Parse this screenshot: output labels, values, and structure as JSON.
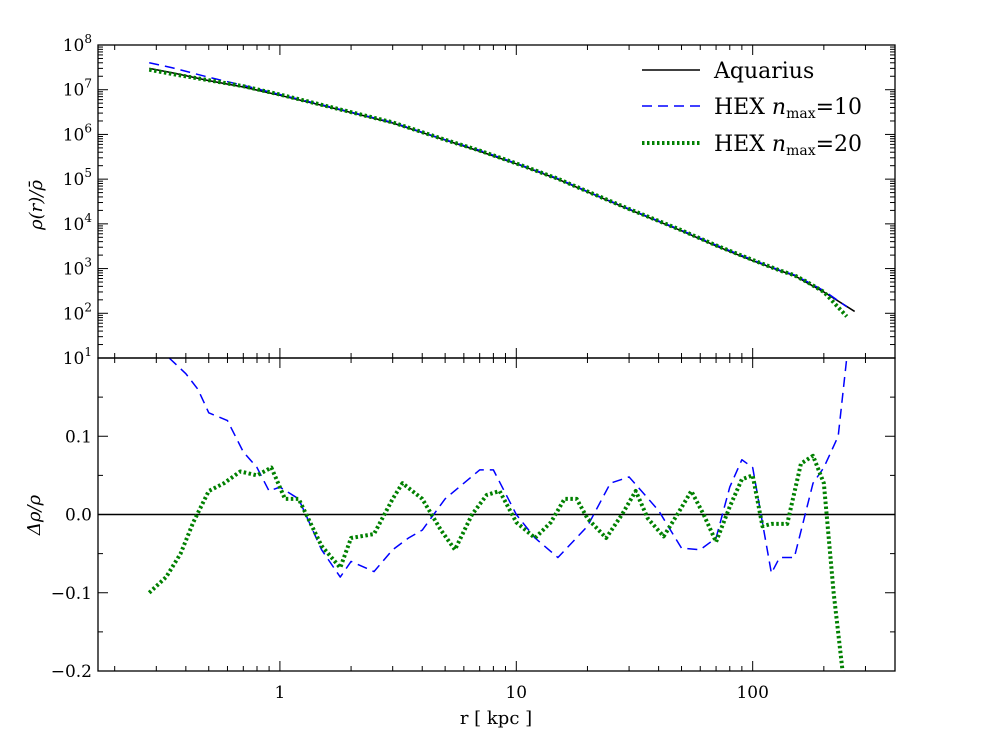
{
  "chart_data": [
    {
      "type": "line",
      "panel": "top",
      "title": "",
      "xlabel": "",
      "ylabel": "ρ(r)/ρ̄",
      "xscale": "log",
      "yscale": "log",
      "xlim": [
        0.17,
        400
      ],
      "ylim": [
        10,
        100000000
      ],
      "xticks": [
        {
          "value": 1,
          "label": "1"
        },
        {
          "value": 10,
          "label": "10"
        },
        {
          "value": 100,
          "label": "100"
        }
      ],
      "yticks": [
        {
          "value": 10,
          "base": "10",
          "exp": "1"
        },
        {
          "value": 100,
          "base": "10",
          "exp": "2"
        },
        {
          "value": 1000,
          "base": "10",
          "exp": "3"
        },
        {
          "value": 10000,
          "base": "10",
          "exp": "4"
        },
        {
          "value": 100000,
          "base": "10",
          "exp": "5"
        },
        {
          "value": 1000000,
          "base": "10",
          "exp": "6"
        },
        {
          "value": 10000000,
          "base": "10",
          "exp": "7"
        },
        {
          "value": 100000000,
          "base": "10",
          "exp": "8"
        }
      ],
      "legend": {
        "placement": "top-right",
        "entries": [
          {
            "series": "Aquarius",
            "text": "Aquarius",
            "sub": "",
            "tail": ""
          },
          {
            "series": "HEX nmax=10",
            "text": "HEX ",
            "italic": "n",
            "sub": "max",
            "tail": "=10"
          },
          {
            "series": "HEX nmax=20",
            "text": "HEX ",
            "italic": "n",
            "sub": "max",
            "tail": "=20"
          }
        ]
      },
      "series": [
        {
          "name": "Aquarius",
          "color": "#000000",
          "style": "solid",
          "x": [
            0.28,
            0.35,
            0.5,
            0.7,
            1.0,
            1.5,
            2.0,
            3.0,
            5.0,
            7.0,
            10,
            15,
            20,
            30,
            50,
            70,
            100,
            130,
            150,
            170,
            200,
            270
          ],
          "y": [
            30000000,
            24000000,
            16000000,
            11500000,
            7500000,
            4500000,
            3100000,
            1800000,
            750000,
            420000,
            220000,
            100000,
            52000,
            21000,
            7000,
            3200,
            1500,
            900,
            700,
            480,
            300,
            110
          ]
        },
        {
          "name": "HEX nmax=10",
          "color": "#0000ff",
          "style": "dashed",
          "x": [
            0.28,
            0.35,
            0.5,
            0.7,
            1.0,
            1.5,
            2.0,
            3.0,
            5.0,
            7.0,
            10,
            15,
            20,
            30,
            50,
            70,
            100,
            130,
            150,
            170,
            200,
            250
          ],
          "y": [
            40000000,
            31000000,
            19000000,
            12500000,
            7800000,
            4600000,
            3150000,
            1850000,
            760000,
            440000,
            225000,
            103000,
            53000,
            21500,
            7200,
            3350,
            1560,
            920,
            720,
            510,
            320,
            140
          ]
        },
        {
          "name": "HEX nmax=20",
          "color": "#008000",
          "style": "dotted",
          "x": [
            0.28,
            0.35,
            0.5,
            0.7,
            1.0,
            1.5,
            2.0,
            3.0,
            5.0,
            7.0,
            10,
            15,
            20,
            30,
            50,
            70,
            100,
            130,
            150,
            170,
            200,
            250
          ],
          "y": [
            28000000,
            22500000,
            16300000,
            12000000,
            7800000,
            4600000,
            3150000,
            1860000,
            760000,
            435000,
            225000,
            102000,
            53000,
            21500,
            7200,
            3300,
            1560,
            910,
            710,
            500,
            300,
            85
          ]
        }
      ]
    },
    {
      "type": "line",
      "panel": "bottom",
      "title": "",
      "xlabel": "r [ kpc ]",
      "ylabel": "Δρ/ρ",
      "xscale": "log",
      "yscale": "linear",
      "xlim": [
        0.17,
        400
      ],
      "ylim": [
        -0.2,
        0.2
      ],
      "xticks": [
        {
          "value": 1,
          "label": "1"
        },
        {
          "value": 10,
          "label": "10"
        },
        {
          "value": 100,
          "label": "100"
        }
      ],
      "yticks": [
        {
          "value": 0.1,
          "label": "0.1"
        },
        {
          "value": 0.0,
          "label": "0.0"
        },
        {
          "value": -0.1,
          "label": "−0.1"
        },
        {
          "value": -0.2,
          "label": "−0.2"
        }
      ],
      "reference_line": {
        "y": 0.0,
        "color": "#000000"
      },
      "series": [
        {
          "name": "HEX nmax=10",
          "color": "#0000ff",
          "style": "dashed",
          "x": [
            0.34,
            0.4,
            0.45,
            0.5,
            0.6,
            0.7,
            0.8,
            0.9,
            1.0,
            1.2,
            1.5,
            1.8,
            2.0,
            2.5,
            3.0,
            3.5,
            4.0,
            5.0,
            6.0,
            7.0,
            8.0,
            10,
            12,
            15,
            20,
            25,
            30,
            40,
            50,
            60,
            70,
            80,
            90,
            100,
            120,
            130,
            150,
            180,
            200,
            230,
            250
          ],
          "y": [
            0.2,
            0.18,
            0.16,
            0.13,
            0.12,
            0.08,
            0.06,
            0.03,
            0.035,
            0.02,
            -0.045,
            -0.08,
            -0.06,
            -0.073,
            -0.045,
            -0.03,
            -0.02,
            0.02,
            0.04,
            0.057,
            0.057,
            0.0,
            -0.03,
            -0.055,
            -0.015,
            0.04,
            0.048,
            0.005,
            -0.043,
            -0.045,
            -0.03,
            0.035,
            0.07,
            0.06,
            -0.075,
            -0.055,
            -0.055,
            0.04,
            0.06,
            0.1,
            0.2
          ]
        },
        {
          "name": "HEX nmax=20",
          "color": "#008000",
          "style": "dotted",
          "x": [
            0.28,
            0.33,
            0.38,
            0.43,
            0.5,
            0.58,
            0.68,
            0.8,
            0.92,
            1.05,
            1.2,
            1.5,
            1.8,
            2.0,
            2.5,
            3.0,
            3.3,
            4.0,
            4.8,
            5.5,
            6.5,
            7.5,
            8.5,
            10,
            12,
            14,
            16,
            18,
            20,
            24,
            28,
            32,
            36,
            42,
            48,
            55,
            62,
            70,
            80,
            90,
            100,
            110,
            120,
            140,
            160,
            180,
            200,
            220,
            240
          ],
          "y": [
            -0.1,
            -0.08,
            -0.05,
            -0.01,
            0.03,
            0.04,
            0.055,
            0.05,
            0.06,
            0.02,
            0.02,
            -0.04,
            -0.068,
            -0.03,
            -0.025,
            0.02,
            0.04,
            0.02,
            -0.02,
            -0.045,
            0.0,
            0.025,
            0.03,
            -0.01,
            -0.03,
            -0.01,
            0.02,
            0.02,
            -0.005,
            -0.03,
            0.0,
            0.03,
            -0.005,
            -0.028,
            0.0,
            0.03,
            0.0,
            -0.035,
            0.01,
            0.045,
            0.05,
            -0.015,
            -0.012,
            -0.012,
            0.065,
            0.075,
            0.04,
            -0.1,
            -0.2
          ]
        }
      ]
    }
  ]
}
